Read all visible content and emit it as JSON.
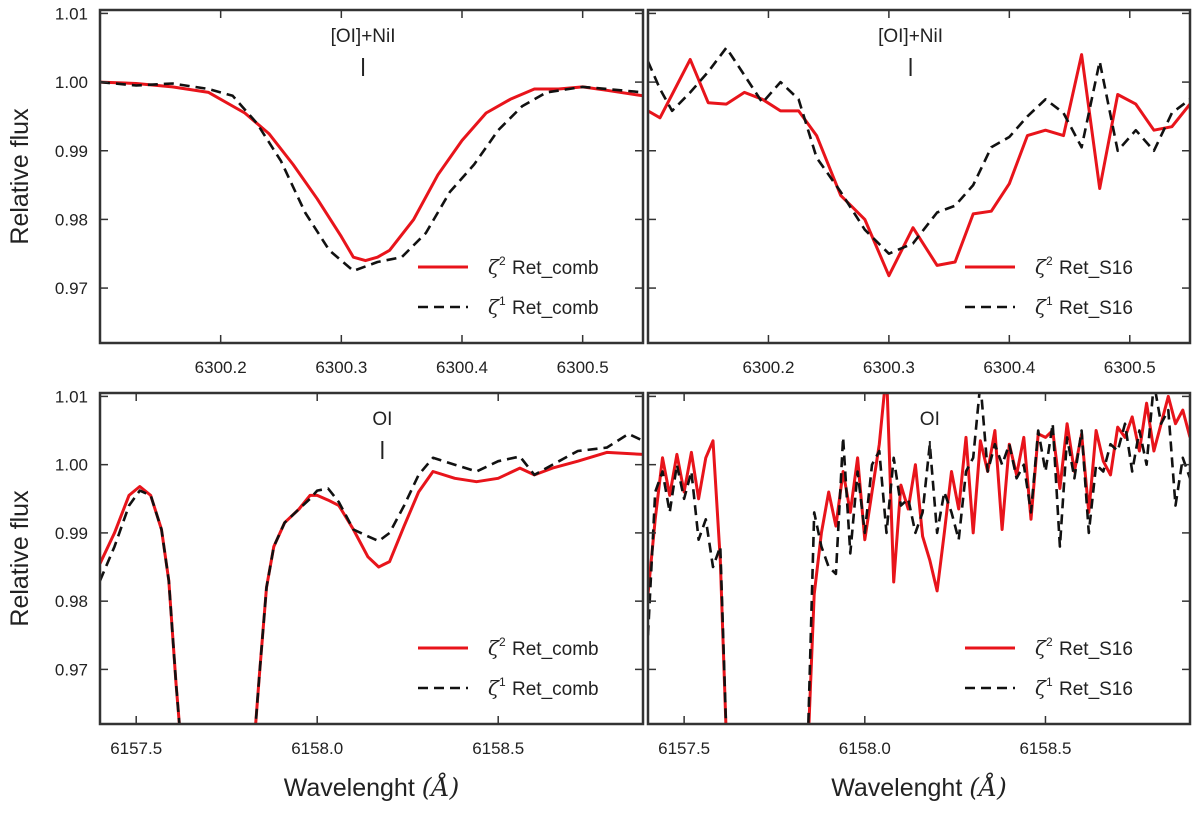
{
  "chart_data": [
    {
      "type": "line",
      "panel": "top-left",
      "annotation": "[OI]+NiI",
      "annotation_x": 6300.318,
      "xlim": [
        6300.1,
        6300.55
      ],
      "ylim": [
        0.962,
        1.0105
      ],
      "xticks": [
        6300.2,
        6300.3,
        6300.4,
        6300.5
      ],
      "xtick_labels": [
        "6300.2",
        "6300.3",
        "6300.4",
        "6300.5"
      ],
      "yticks": [
        0.97,
        0.98,
        0.99,
        1.0,
        1.01
      ],
      "ytick_labels": [
        "0.97",
        "0.98",
        "0.99",
        "1.00",
        "1.01"
      ],
      "ylabel": "Relative flux",
      "xlabel": "",
      "legend_position": "lower-right",
      "series": [
        {
          "name": "Ret_comb",
          "symbol": "ζ",
          "sup": "2",
          "color": "#e8141b",
          "dash": "solid",
          "x": [
            6300.1,
            6300.13,
            6300.16,
            6300.19,
            6300.22,
            6300.24,
            6300.26,
            6300.28,
            6300.3,
            6300.31,
            6300.32,
            6300.33,
            6300.34,
            6300.36,
            6300.38,
            6300.4,
            6300.42,
            6300.44,
            6300.46,
            6300.48,
            6300.5,
            6300.52,
            6300.55
          ],
          "y": [
            1.0,
            0.9998,
            0.9993,
            0.9985,
            0.9955,
            0.9925,
            0.988,
            0.983,
            0.9775,
            0.9745,
            0.974,
            0.9745,
            0.9755,
            0.98,
            0.9865,
            0.9915,
            0.9955,
            0.9975,
            0.999,
            0.999,
            0.9993,
            0.9988,
            0.998
          ]
        },
        {
          "name": "Ret_comb",
          "symbol": "ζ",
          "sup": "1",
          "color": "#111111",
          "dash": "dashed",
          "x": [
            6300.1,
            6300.13,
            6300.16,
            6300.19,
            6300.21,
            6300.23,
            6300.25,
            6300.27,
            6300.29,
            6300.31,
            6300.33,
            6300.35,
            6300.37,
            6300.39,
            6300.41,
            6300.43,
            6300.45,
            6300.47,
            6300.5,
            6300.52,
            6300.55
          ],
          "y": [
            1.0,
            0.9995,
            0.9998,
            0.999,
            0.998,
            0.994,
            0.9885,
            0.981,
            0.9755,
            0.9725,
            0.9738,
            0.9745,
            0.978,
            0.984,
            0.988,
            0.993,
            0.9965,
            0.9985,
            0.9993,
            0.999,
            0.9985
          ]
        }
      ]
    },
    {
      "type": "line",
      "panel": "top-right",
      "annotation": "[OI]+NiI",
      "annotation_x": 6300.318,
      "xlim": [
        6300.1,
        6300.55
      ],
      "ylim": [
        0.962,
        1.0105
      ],
      "xticks": [
        6300.2,
        6300.3,
        6300.4,
        6300.5
      ],
      "xtick_labels": [
        "6300.2",
        "6300.3",
        "6300.4",
        "6300.5"
      ],
      "legend_position": "lower-right",
      "series": [
        {
          "name": "Ret_S16",
          "symbol": "ζ",
          "sup": "2",
          "color": "#e8141b",
          "dash": "solid",
          "x": [
            6300.1,
            6300.11,
            6300.12,
            6300.135,
            6300.15,
            6300.165,
            6300.18,
            6300.195,
            6300.21,
            6300.225,
            6300.24,
            6300.26,
            6300.28,
            6300.3,
            6300.32,
            6300.34,
            6300.355,
            6300.37,
            6300.385,
            6300.4,
            6300.415,
            6300.43,
            6300.445,
            6300.46,
            6300.475,
            6300.49,
            6300.505,
            6300.52,
            6300.535,
            6300.55
          ],
          "y": [
            0.9958,
            0.9948,
            0.9982,
            1.0033,
            0.997,
            0.9968,
            0.9985,
            0.9975,
            0.9958,
            0.9958,
            0.9922,
            0.9835,
            0.98,
            0.9718,
            0.9788,
            0.9733,
            0.9738,
            0.9808,
            0.9812,
            0.9852,
            0.9922,
            0.993,
            0.9922,
            1.004,
            0.9845,
            0.9982,
            0.9968,
            0.993,
            0.9935,
            0.9968
          ]
        },
        {
          "name": "Ret_S16",
          "symbol": "ζ",
          "sup": "1",
          "color": "#111111",
          "dash": "dashed",
          "x": [
            6300.1,
            6300.11,
            6300.12,
            6300.135,
            6300.15,
            6300.165,
            6300.18,
            6300.195,
            6300.21,
            6300.225,
            6300.24,
            6300.26,
            6300.28,
            6300.3,
            6300.32,
            6300.34,
            6300.355,
            6300.37,
            6300.385,
            6300.4,
            6300.415,
            6300.43,
            6300.445,
            6300.46,
            6300.475,
            6300.49,
            6300.505,
            6300.52,
            6300.535,
            6300.55
          ],
          "y": [
            1.003,
            0.999,
            0.9958,
            0.9985,
            1.0015,
            1.005,
            1.001,
            0.997,
            1.0,
            0.9975,
            0.989,
            0.984,
            0.9785,
            0.975,
            0.9765,
            0.981,
            0.982,
            0.985,
            0.9905,
            0.992,
            0.995,
            0.9975,
            0.9955,
            0.9905,
            1.003,
            0.99,
            0.993,
            0.99,
            0.9955,
            0.9975
          ]
        }
      ]
    },
    {
      "type": "line",
      "panel": "bottom-left",
      "annotation": "OI",
      "annotation_x": 6158.18,
      "xlim": [
        6157.4,
        6158.9
      ],
      "ylim": [
        0.962,
        1.0105
      ],
      "xticks": [
        6157.5,
        6158.0,
        6158.5
      ],
      "xtick_labels": [
        "6157.5",
        "6158.0",
        "6158.5"
      ],
      "yticks": [
        0.97,
        0.98,
        0.99,
        1.0,
        1.01
      ],
      "ytick_labels": [
        "0.97",
        "0.98",
        "0.99",
        "1.00",
        "1.01"
      ],
      "ylabel": "Relative flux",
      "xlabel": "Wavelenght",
      "xlabel_unit": "(Å)",
      "legend_position": "lower-right",
      "series": [
        {
          "name": "Ret_comb",
          "symbol": "ζ",
          "sup": "2",
          "color": "#e8141b",
          "dash": "solid",
          "x": [
            6157.4,
            6157.44,
            6157.48,
            6157.51,
            6157.54,
            6157.57,
            6157.59,
            6157.61,
            6157.63,
            6157.82,
            6157.84,
            6157.86,
            6157.88,
            6157.91,
            6157.95,
            6157.98,
            6158.0,
            6158.03,
            6158.06,
            6158.1,
            6158.14,
            6158.17,
            6158.2,
            6158.24,
            6158.28,
            6158.32,
            6158.38,
            6158.44,
            6158.5,
            6158.56,
            6158.6,
            6158.65,
            6158.72,
            6158.8,
            6158.9
          ],
          "y": [
            0.9855,
            0.99,
            0.9955,
            0.9968,
            0.9955,
            0.9905,
            0.983,
            0.968,
            0.955,
            0.955,
            0.969,
            0.982,
            0.988,
            0.9915,
            0.9935,
            0.9955,
            0.9955,
            0.9948,
            0.994,
            0.9905,
            0.9865,
            0.985,
            0.9858,
            0.991,
            0.996,
            0.999,
            0.998,
            0.9975,
            0.998,
            0.9995,
            0.9985,
            0.9995,
            1.0005,
            1.0018,
            1.0015
          ]
        },
        {
          "name": "Ret_comb",
          "symbol": "ζ",
          "sup": "1",
          "color": "#111111",
          "dash": "dashed",
          "x": [
            6157.4,
            6157.44,
            6157.48,
            6157.51,
            6157.54,
            6157.57,
            6157.59,
            6157.61,
            6157.63,
            6157.82,
            6157.84,
            6157.86,
            6157.88,
            6157.91,
            6157.95,
            6157.98,
            6158.0,
            6158.03,
            6158.06,
            6158.1,
            6158.14,
            6158.17,
            6158.2,
            6158.24,
            6158.28,
            6158.32,
            6158.38,
            6158.44,
            6158.5,
            6158.56,
            6158.6,
            6158.65,
            6158.72,
            6158.8,
            6158.86,
            6158.9
          ],
          "y": [
            0.983,
            0.988,
            0.994,
            0.9962,
            0.9955,
            0.9905,
            0.983,
            0.968,
            0.955,
            0.955,
            0.969,
            0.982,
            0.988,
            0.9915,
            0.9935,
            0.995,
            0.9962,
            0.9965,
            0.9945,
            0.9905,
            0.9895,
            0.9888,
            0.99,
            0.994,
            0.9985,
            1.001,
            1.0,
            0.999,
            1.0005,
            1.0012,
            0.9985,
            1.0,
            1.002,
            1.0025,
            1.0045,
            1.0035
          ]
        }
      ]
    },
    {
      "type": "line",
      "panel": "bottom-right",
      "annotation": "OI",
      "annotation_x": 6158.18,
      "xlim": [
        6157.4,
        6158.9
      ],
      "ylim": [
        0.962,
        1.0105
      ],
      "xticks": [
        6157.5,
        6158.0,
        6158.5
      ],
      "xtick_labels": [
        "6157.5",
        "6158.0",
        "6158.5"
      ],
      "xlabel": "Wavelenght",
      "xlabel_unit": "(Å)",
      "legend_position": "lower-right",
      "series": [
        {
          "name": "Ret_S16",
          "symbol": "ζ",
          "sup": "2",
          "color": "#e8141b",
          "dash": "solid",
          "x": [
            6157.4,
            6157.42,
            6157.44,
            6157.46,
            6157.48,
            6157.5,
            6157.52,
            6157.54,
            6157.56,
            6157.58,
            6157.6,
            6157.62,
            6157.84,
            6157.86,
            6157.88,
            6157.9,
            6157.92,
            6157.94,
            6157.96,
            6157.98,
            6158.0,
            6158.02,
            6158.04,
            6158.06,
            6158.08,
            6158.1,
            6158.12,
            6158.14,
            6158.16,
            6158.18,
            6158.2,
            6158.22,
            6158.24,
            6158.26,
            6158.28,
            6158.3,
            6158.32,
            6158.34,
            6158.36,
            6158.38,
            6158.4,
            6158.42,
            6158.44,
            6158.46,
            6158.48,
            6158.5,
            6158.52,
            6158.54,
            6158.56,
            6158.58,
            6158.6,
            6158.62,
            6158.64,
            6158.66,
            6158.68,
            6158.7,
            6158.72,
            6158.74,
            6158.76,
            6158.78,
            6158.8,
            6158.82,
            6158.84,
            6158.86,
            6158.88,
            6158.9
          ],
          "y": [
            0.981,
            0.992,
            1.001,
            0.9955,
            1.0015,
            0.996,
            1.0018,
            0.995,
            1.001,
            1.0035,
            0.986,
            0.955,
            0.955,
            0.981,
            0.99,
            0.996,
            0.991,
            0.999,
            0.993,
            1.001,
            0.989,
            0.996,
            1.003,
            1.0138,
            0.9828,
            0.997,
            0.9935,
            1.0,
            0.9895,
            0.986,
            0.9815,
            0.99,
            0.999,
            0.9935,
            1.004,
            0.99,
            1.0035,
            0.999,
            1.005,
            0.9905,
            1.003,
            0.9985,
            1.004,
            0.992,
            1.0045,
            1.004,
            1.005,
            0.9965,
            1.006,
            0.999,
            1.0045,
            0.993,
            1.005,
            1.0005,
            0.9985,
            1.0055,
            1.004,
            1.007,
            1.002,
            1.009,
            1.002,
            1.006,
            1.01,
            1.006,
            1.008,
            1.004
          ]
        },
        {
          "name": "Ret_S16",
          "symbol": "ζ",
          "sup": "1",
          "color": "#111111",
          "dash": "dashed",
          "x": [
            6157.4,
            6157.42,
            6157.44,
            6157.46,
            6157.48,
            6157.5,
            6157.52,
            6157.54,
            6157.56,
            6157.58,
            6157.6,
            6157.62,
            6157.84,
            6157.86,
            6157.88,
            6157.9,
            6157.92,
            6157.94,
            6157.96,
            6157.98,
            6158.0,
            6158.02,
            6158.04,
            6158.06,
            6158.08,
            6158.1,
            6158.12,
            6158.14,
            6158.16,
            6158.18,
            6158.2,
            6158.22,
            6158.24,
            6158.26,
            6158.28,
            6158.3,
            6158.32,
            6158.34,
            6158.36,
            6158.38,
            6158.4,
            6158.42,
            6158.44,
            6158.46,
            6158.48,
            6158.5,
            6158.52,
            6158.54,
            6158.56,
            6158.58,
            6158.6,
            6158.62,
            6158.64,
            6158.66,
            6158.68,
            6158.7,
            6158.72,
            6158.74,
            6158.76,
            6158.78,
            6158.8,
            6158.82,
            6158.84,
            6158.86,
            6158.88,
            6158.9
          ],
          "y": [
            0.975,
            0.996,
            0.999,
            0.993,
            1.0,
            0.995,
            0.999,
            0.989,
            0.992,
            0.985,
            0.988,
            0.955,
            0.955,
            0.993,
            0.988,
            0.985,
            0.984,
            1.004,
            0.987,
            0.999,
            0.99,
            1.0,
            1.002,
            0.99,
            1.001,
            0.994,
            0.995,
            0.99,
            0.993,
            1.003,
            0.99,
            0.996,
            0.993,
            0.989,
            0.999,
            1.001,
            1.012,
            0.999,
            1.003,
            1.0,
            1.003,
            0.998,
            1.0,
            0.993,
            1.005,
            0.999,
            1.006,
            0.988,
            1.004,
            0.998,
            1.005,
            0.99,
            1.0,
            0.999,
            1.003,
            1.002,
            1.006,
            0.999,
            1.005,
            1.0,
            1.012,
            1.006,
            1.008,
            0.994,
            1.001,
            0.998
          ]
        }
      ]
    }
  ]
}
